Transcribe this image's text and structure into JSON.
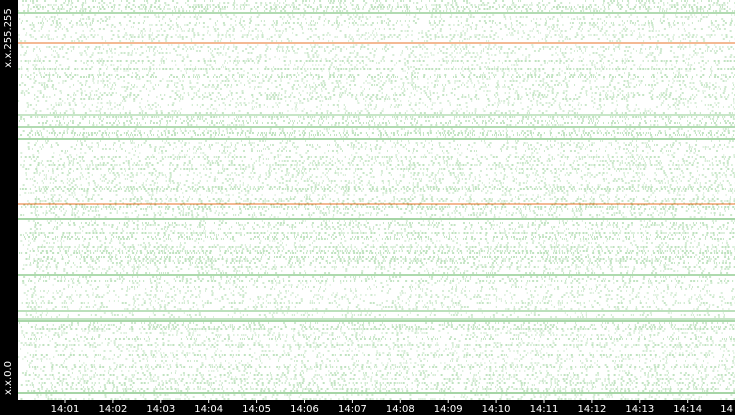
{
  "y_axis_labels": [
    "x.x.255.255",
    "x.x.0.0"
  ],
  "x_axis_labels": [
    "14:01",
    "14:02",
    "14:03",
    "14:04",
    "14:05",
    "14:06",
    "14:07",
    "14:08",
    "14:09",
    "14:10",
    "14:11",
    "14:12",
    "14:13",
    "14:14",
    "14"
  ]
}
